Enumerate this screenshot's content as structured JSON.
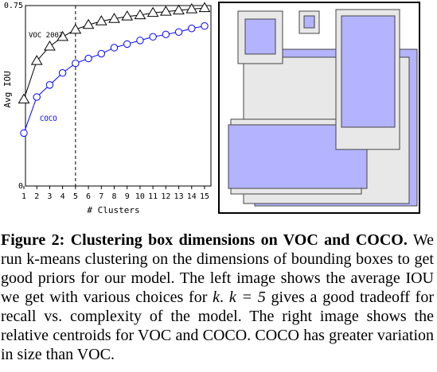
{
  "chart_data": {
    "type": "line",
    "xlabel": "# Clusters",
    "ylabel": "Avg IOU",
    "x": [
      1,
      2,
      3,
      4,
      5,
      6,
      7,
      8,
      9,
      10,
      11,
      12,
      13,
      14,
      15
    ],
    "xlim": [
      1,
      15
    ],
    "ylim": [
      0,
      0.75
    ],
    "y_ticks": [
      "0",
      "0.75"
    ],
    "x_ticks": [
      "1",
      "2",
      "3",
      "4",
      "5",
      "6",
      "7",
      "8",
      "9",
      "10",
      "11",
      "12",
      "13",
      "14",
      "15"
    ],
    "vline_at": 5,
    "grid": false,
    "series": [
      {
        "name": "VOC 2007",
        "marker": "triangle",
        "color": "#000000",
        "values": [
          0.36,
          0.52,
          0.58,
          0.62,
          0.65,
          0.67,
          0.685,
          0.695,
          0.705,
          0.71,
          0.72,
          0.725,
          0.73,
          0.735,
          0.74
        ]
      },
      {
        "name": "COCO",
        "marker": "circle",
        "color": "#0000ff",
        "values": [
          0.22,
          0.37,
          0.42,
          0.47,
          0.51,
          0.53,
          0.55,
          0.575,
          0.59,
          0.605,
          0.62,
          0.63,
          0.64,
          0.655,
          0.665
        ]
      }
    ]
  },
  "centroids": {
    "voc_color": "#e8e8e8",
    "coco_color": "#b3b3ff",
    "frame_color": "#000000"
  },
  "caption": {
    "label": "Figure 2:",
    "title": "Clustering box dimensions on VOC and COCO.",
    "text_1": "We run k-means clustering on the dimensions of bounding boxes to get good priors for our model. The left image shows the average IOU we get with various choices for",
    "math_k": "k",
    "text_2": ".",
    "math_k5": "k = 5",
    "text_3": "gives a good tradeoff for recall vs. complexity of the model. The right image shows the relative centroids for VOC and COCO. COCO has greater variation in size than VOC."
  }
}
